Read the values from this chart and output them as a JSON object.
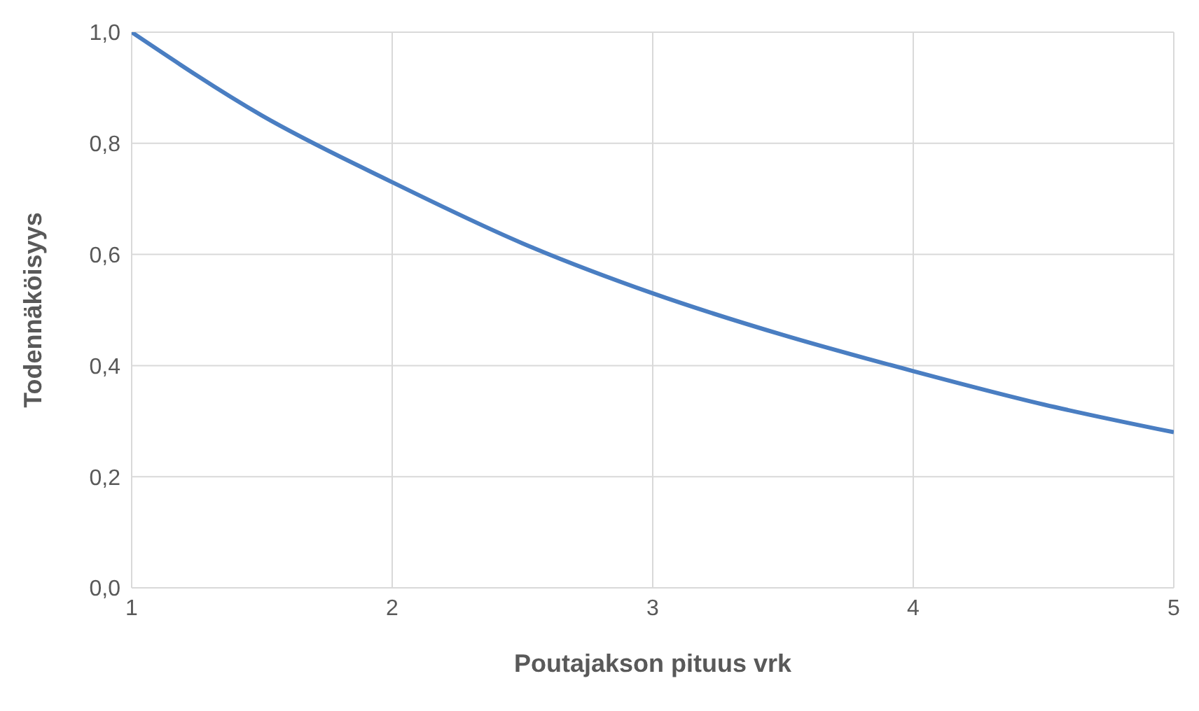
{
  "chart_data": {
    "type": "line",
    "xlabel": "Poutajakson pituus vrk",
    "ylabel": "Todennäköisyys",
    "x": [
      1,
      1.5,
      2,
      2.5,
      3,
      3.5,
      4,
      4.5,
      5
    ],
    "series": [
      {
        "color": "#4a7ec2",
        "values": [
          1.0,
          0.85,
          0.73,
          0.62,
          0.53,
          0.455,
          0.39,
          0.33,
          0.28
        ]
      }
    ],
    "xlim": [
      1,
      5
    ],
    "xticks": [
      1,
      2,
      3,
      4,
      5
    ],
    "ylim": [
      0,
      1
    ],
    "yticks": [
      {
        "value": 0,
        "label": "0,0"
      },
      {
        "value": 0.2,
        "label": "0,2"
      },
      {
        "value": 0.4,
        "label": "0,4"
      },
      {
        "value": 0.6,
        "label": "0,6"
      },
      {
        "value": 0.8,
        "label": "0,8"
      },
      {
        "value": 1,
        "label": "1,0"
      }
    ],
    "grid": true,
    "marker": "none",
    "line_style": "solid"
  }
}
